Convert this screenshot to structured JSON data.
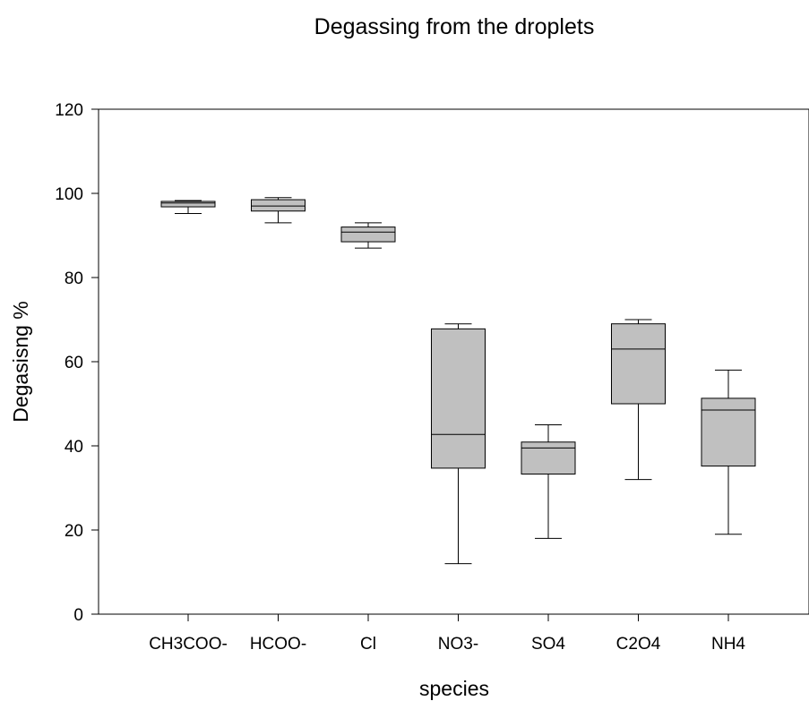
{
  "chart_data": {
    "type": "box",
    "title": "Degassing from the droplets",
    "xlabel": "species",
    "ylabel": "Degasisng %",
    "ylim": [
      0,
      120
    ],
    "yticks": [
      0,
      20,
      40,
      60,
      80,
      100,
      120
    ],
    "box_fill": "#c0c0c0",
    "grid": false,
    "categories": [
      "CH3COO-",
      "HCOO-",
      "Cl",
      "NO3-",
      "SO4",
      "C2O4",
      "NH4"
    ],
    "boxes": [
      {
        "min": 95.2,
        "q1": 96.8,
        "median": 97.7,
        "q3": 98.1,
        "max": 98.3
      },
      {
        "min": 93.0,
        "q1": 95.8,
        "median": 97.0,
        "q3": 98.5,
        "max": 99.0
      },
      {
        "min": 87.0,
        "q1": 88.5,
        "median": 90.8,
        "q3": 92.0,
        "max": 93.0
      },
      {
        "min": 12.0,
        "q1": 34.7,
        "median": 42.7,
        "q3": 67.8,
        "max": 69.0
      },
      {
        "min": 18.0,
        "q1": 33.3,
        "median": 39.5,
        "q3": 40.9,
        "max": 45.0
      },
      {
        "min": 32.0,
        "q1": 50.0,
        "median": 63.0,
        "q3": 69.0,
        "max": 70.0
      },
      {
        "min": 19.0,
        "q1": 35.2,
        "median": 48.5,
        "q3": 51.3,
        "max": 58.0
      }
    ]
  }
}
